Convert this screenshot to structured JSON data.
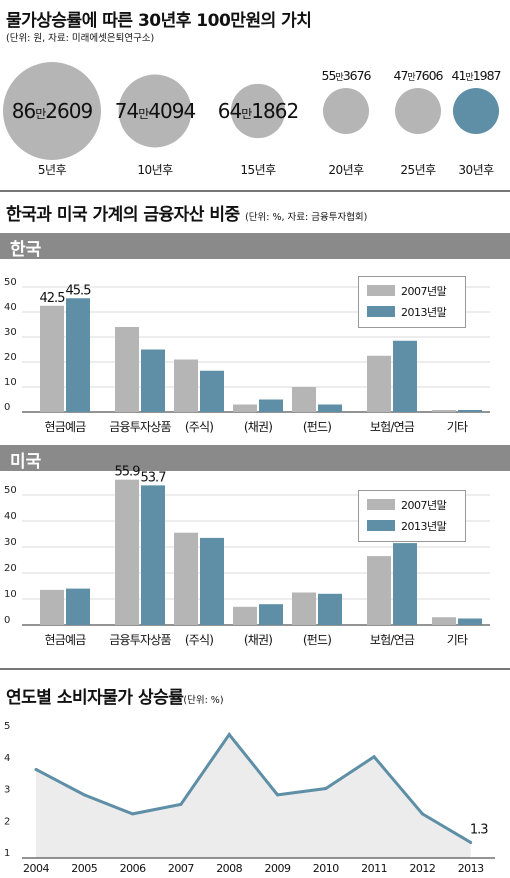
{
  "section1": {
    "title": "물가상승률에 따른 30년후 100만원의 가치",
    "note": "(단위: 원, 자료: 미래에셋은퇴연구소)",
    "chart_data": {
      "type": "bubble",
      "items": [
        {
          "label": "5년후",
          "value_big": "86",
          "value_mid": "만",
          "value_end": "2609",
          "value": 862609
        },
        {
          "label": "10년후",
          "value_big": "74",
          "value_mid": "만",
          "value_end": "4094",
          "value": 744094
        },
        {
          "label": "15년후",
          "value_big": "64",
          "value_mid": "만",
          "value_end": "1862",
          "value": 641862
        },
        {
          "label": "20년후",
          "value_big": "55",
          "value_mid": "만",
          "value_end": "3676",
          "value": 553676
        },
        {
          "label": "25년후",
          "value_big": "47",
          "value_mid": "만",
          "value_end": "7606",
          "value": 477606
        },
        {
          "label": "30년후",
          "value_big": "41",
          "value_mid": "만",
          "value_end": "1987",
          "value": 411987
        }
      ],
      "colors": {
        "gray": "#b5b5b5",
        "highlight": "#5e8fa6"
      }
    }
  },
  "section2": {
    "title": "한국과 미국 가계의 금융자산 비중",
    "unit_note": "(단위: %, 자료: 금융투자협회)",
    "legend": [
      "2007년말",
      "2013년말"
    ],
    "colors": {
      "s2007": "#b5b5b5",
      "s2013": "#5e8fa6"
    },
    "charts": [
      {
        "country": "한국",
        "chart_data": {
          "type": "bar",
          "categories": [
            "현금예금",
            "금융투자상품",
            "(주식)",
            "(채권)",
            "(펀드)",
            "보험/연금",
            "기타"
          ],
          "series": [
            {
              "name": "2007년말",
              "values": [
                42.5,
                34,
                21,
                3,
                10,
                22.5,
                0.8
              ]
            },
            {
              "name": "2013년말",
              "values": [
                45.5,
                25,
                16.5,
                5,
                3,
                28.5,
                0.8
              ]
            }
          ],
          "data_labels": [
            {
              "series": 0,
              "index": 0,
              "text": "42.5"
            },
            {
              "series": 1,
              "index": 0,
              "text": "45.5"
            }
          ],
          "ylim": [
            0,
            50
          ],
          "yticks": [
            "0",
            "10",
            "20",
            "30",
            "40",
            "50"
          ],
          "legend_position": "top-right"
        }
      },
      {
        "country": "미국",
        "chart_data": {
          "type": "bar",
          "categories": [
            "현금예금",
            "금융투자상품",
            "(주식)",
            "(채권)",
            "(펀드)",
            "보험/연금",
            "기타"
          ],
          "series": [
            {
              "name": "2007년말",
              "values": [
                13.5,
                55.9,
                35.5,
                7,
                12.5,
                26.5,
                3
              ]
            },
            {
              "name": "2013년말",
              "values": [
                14,
                53.7,
                33.5,
                8,
                12,
                31.5,
                2.5
              ]
            }
          ],
          "data_labels": [
            {
              "series": 0,
              "index": 1,
              "text": "55.9"
            },
            {
              "series": 1,
              "index": 1,
              "text": "53.7"
            }
          ],
          "ylim": [
            0,
            60
          ],
          "yticks": [
            "0",
            "10",
            "20",
            "30",
            "40",
            "50"
          ],
          "legend_position": "top-right"
        }
      }
    ]
  },
  "section3": {
    "title": "연도별 소비자물가 상승률",
    "unit_note": "(단위: %)",
    "chart_data": {
      "type": "line",
      "x": [
        "2004",
        "2005",
        "2006",
        "2007",
        "2008",
        "2009",
        "2010",
        "2011",
        "2012",
        "2013"
      ],
      "values": [
        3.6,
        2.8,
        2.2,
        2.5,
        4.7,
        2.8,
        3.0,
        4.0,
        2.2,
        1.3
      ],
      "ylim": [
        1,
        5
      ],
      "yticks": [
        "1",
        "2",
        "3",
        "4",
        "5"
      ],
      "data_labels": [
        {
          "index": 9,
          "text": "1.3"
        }
      ],
      "line_color": "#5e8fa6",
      "fill_color": "#ececec"
    }
  }
}
